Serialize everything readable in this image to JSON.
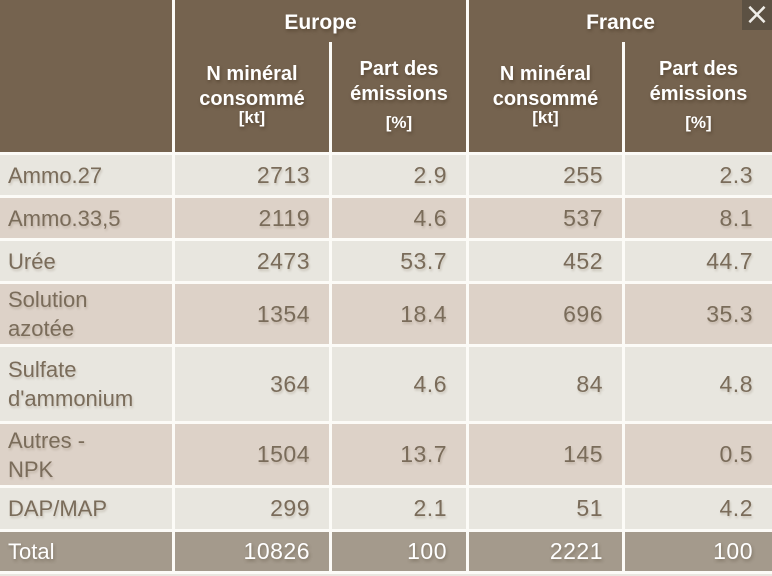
{
  "colors": {
    "header_bg": "#75634F",
    "header_text": "#FFFFFF",
    "row_light": "#E8E6DF",
    "row_beige": "#DDD2C8",
    "total_bg": "#A49A8C",
    "body_text": "#7A6C5A",
    "separator": "#FCFBF7",
    "close_bg": "#5C5143"
  },
  "window": {
    "close_icon": "×"
  },
  "header": {
    "groups": [
      {
        "label": "Europe"
      },
      {
        "label": "France"
      }
    ],
    "columns": [
      {
        "label": "N minéral consommé",
        "unit": "[kt]"
      },
      {
        "label": "Part des émissions",
        "unit": "[%]"
      },
      {
        "label": "N minéral consommé",
        "unit": "[kt]"
      },
      {
        "label": "Part des émissions",
        "unit": "[%]"
      }
    ]
  },
  "table": {
    "rows": [
      {
        "label": "Ammo.27",
        "europe_kt": "2713",
        "europe_pct": "2.9",
        "france_kt": "255",
        "france_pct": "2.3"
      },
      {
        "label": "Ammo.33,5",
        "europe_kt": "2119",
        "europe_pct": "4.6",
        "france_kt": "537",
        "france_pct": "8.1"
      },
      {
        "label": "Urée",
        "europe_kt": "2473",
        "europe_pct": "53.7",
        "france_kt": "452",
        "france_pct": "44.7"
      },
      {
        "label": "Solution\nazotée",
        "europe_kt": "1354",
        "europe_pct": "18.4",
        "france_kt": "696",
        "france_pct": "35.3"
      },
      {
        "label": "Sulfate\nd'ammonium",
        "europe_kt": "364",
        "europe_pct": "4.6",
        "france_kt": "84",
        "france_pct": "4.8"
      },
      {
        "label": "Autres -\nNPK",
        "europe_kt": "1504",
        "europe_pct": "13.7",
        "france_kt": "145",
        "france_pct": "0.5"
      },
      {
        "label": "DAP/MAP",
        "europe_kt": "299",
        "europe_pct": "2.1",
        "france_kt": "51",
        "france_pct": "4.2"
      }
    ],
    "total": {
      "label": "Total",
      "europe_kt": "10826",
      "europe_pct": "100",
      "france_kt": "2221",
      "france_pct": "100"
    }
  }
}
